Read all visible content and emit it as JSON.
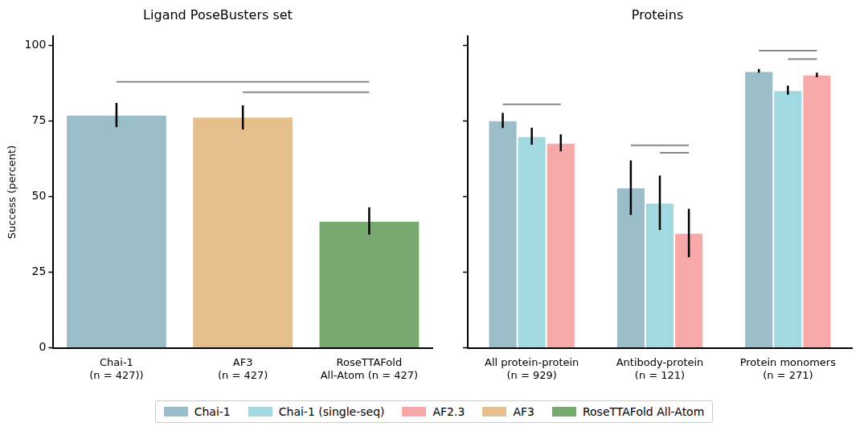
{
  "chart_data": [
    {
      "type": "bar",
      "title": "Ligand PoseBusters set",
      "y_label": "Success (percent)",
      "categories": [
        [
          "Chai-1",
          "(n = 427))"
        ],
        [
          "AF3",
          "(n = 427)"
        ],
        [
          "RoseTTAFold",
          "All-Atom (n = 427)"
        ]
      ],
      "series": [
        {
          "name": "Chai-1",
          "color": "#9bbdca",
          "values": [
            77.1,
            null,
            null
          ],
          "error_bars": [
            [
              73.0,
              81.0
            ],
            null,
            null
          ]
        },
        {
          "name": "AF3",
          "color": "#e5bf8c",
          "values": [
            null,
            76.4,
            null
          ],
          "error_bars": [
            null,
            [
              72.2,
              80.2
            ],
            null
          ]
        },
        {
          "name": "RoseTTAFold All-Atom",
          "color": "#78a96e",
          "values": [
            null,
            null,
            42.0
          ],
          "error_bars": [
            null,
            null,
            [
              37.5,
              46.5
            ]
          ]
        }
      ],
      "significance": [
        {
          "from": "Chai-1",
          "to": "RoseTTAFold All-Atom",
          "y": 88.0
        },
        {
          "from": "AF3",
          "to": "RoseTTAFold All-Atom",
          "y": 84.5
        }
      ],
      "ylim": [
        0,
        103
      ],
      "yticks": [
        0,
        25,
        50,
        75,
        100
      ],
      "grid": false,
      "legend": "bottom"
    },
    {
      "type": "bar",
      "title": "Proteins",
      "categories": [
        [
          "All protein-protein",
          "(n = 929)"
        ],
        [
          "Antibody-protein",
          "(n = 121)"
        ],
        [
          "Protein monomers",
          "(n = 271)"
        ]
      ],
      "series": [
        {
          "name": "Chai-1",
          "color": "#9bbdca",
          "values": [
            75.2,
            53.0,
            91.5
          ],
          "error_bars": [
            [
              72.7,
              77.7
            ],
            [
              44.0,
              62.0
            ],
            [
              91.0,
              92.2
            ]
          ]
        },
        {
          "name": "Chai-1 (single-seq)",
          "color": "#a2d8df",
          "values": [
            70.0,
            48.0,
            85.2
          ],
          "error_bars": [
            [
              67.2,
              72.8
            ],
            [
              39.0,
              57.0
            ],
            [
              83.7,
              86.7
            ]
          ]
        },
        {
          "name": "AF2.3",
          "color": "#f6a9a8",
          "values": [
            67.8,
            38.0,
            90.3
          ],
          "error_bars": [
            [
              65.0,
              70.6
            ],
            [
              30.0,
              46.0
            ],
            [
              89.5,
              91.0
            ]
          ]
        }
      ],
      "significance": [
        {
          "category": "All protein-protein",
          "from": "Chai-1",
          "to": "AF2.3",
          "y": 80.5
        },
        {
          "category": "Antibody-protein",
          "from": "Chai-1",
          "to": "AF2.3",
          "y": 67.0
        },
        {
          "category": "Antibody-protein",
          "from": "Chai-1 (single-seq)",
          "to": "AF2.3",
          "y": 64.5
        },
        {
          "category": "Protein monomers",
          "from": "Chai-1",
          "to": "AF2.3",
          "y": 98.3
        },
        {
          "category": "Protein monomers",
          "from": "Chai-1 (single-seq)",
          "to": "AF2.3",
          "y": 95.5
        }
      ],
      "ylim": [
        0,
        103
      ],
      "yticks": [
        0,
        25,
        50,
        75,
        100
      ],
      "grid": false,
      "tick_labels": "x",
      "legend": "bottom"
    }
  ]
}
